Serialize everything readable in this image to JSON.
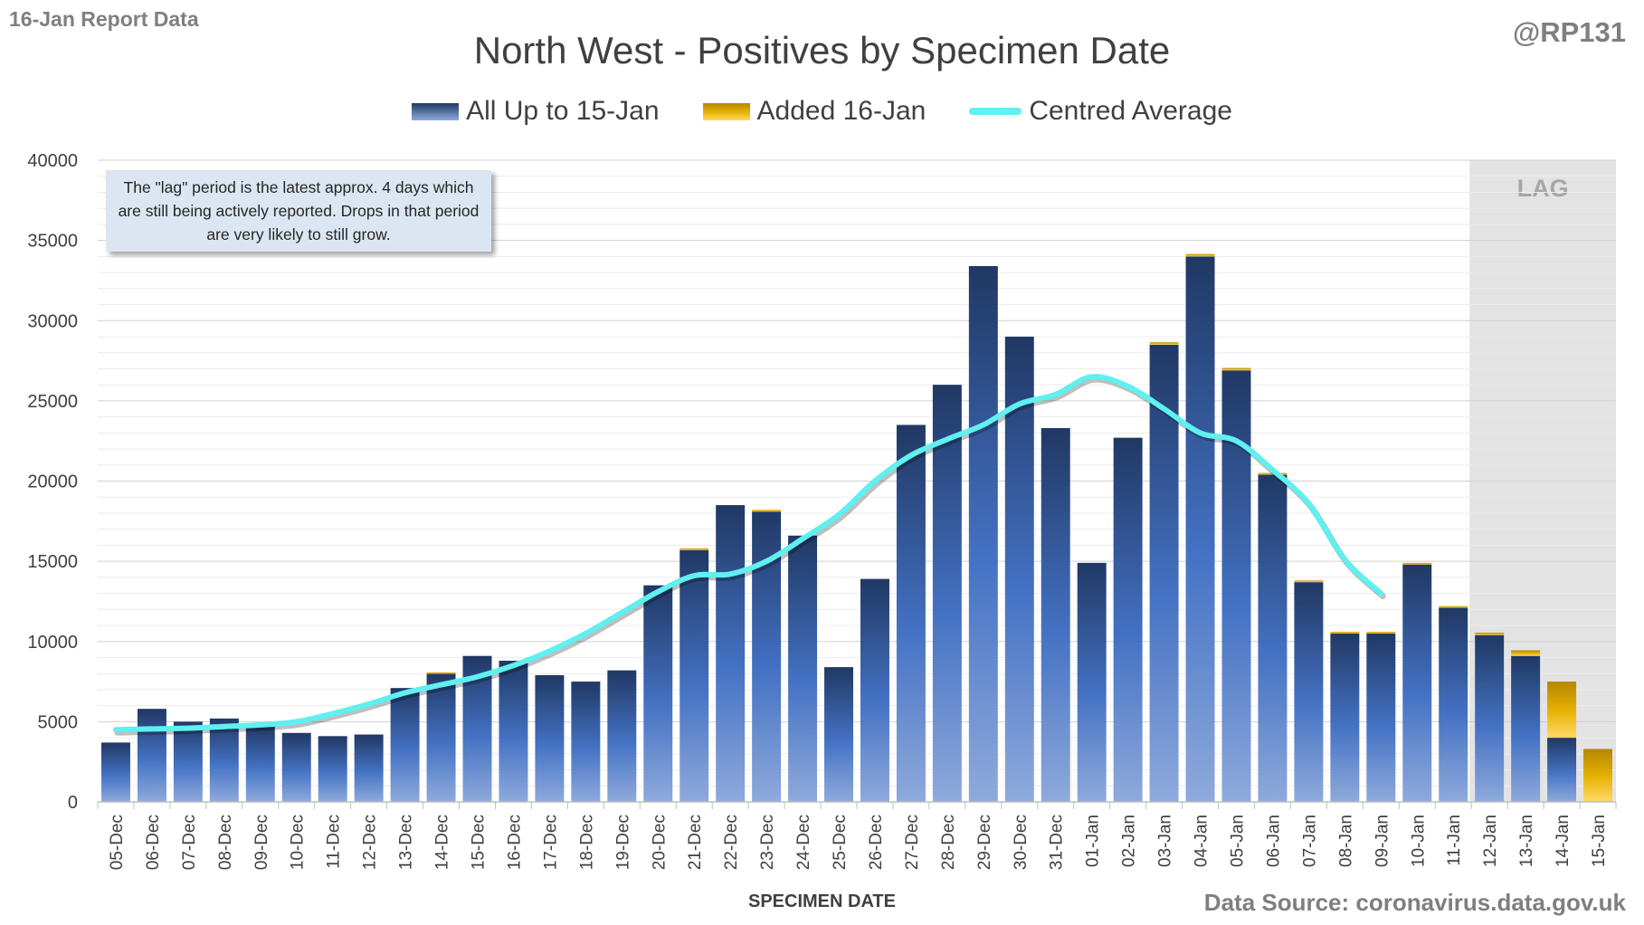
{
  "header": {
    "report_label": "16-Jan Report Data",
    "author_handle": "@RP131",
    "data_source": "Data Source: coronavirus.data.gov.uk",
    "note": "The \"lag\" period is the latest approx. 4 days which are still being actively reported.  Drops in that period are very likely to still grow.",
    "lag_label": "LAG"
  },
  "colors": {
    "bar_top": "#203864",
    "bar_bottom": "#8faadc",
    "added": "#e6b000",
    "average": "#5ff0f0",
    "lag_shading": "#d9d9d9",
    "note_bg": "#dce6f2"
  },
  "chart_data": {
    "type": "bar",
    "title": "North West - Positives by Specimen Date",
    "xlabel": "SPECIMEN DATE",
    "ylabel": "",
    "ylim": [
      0,
      40000
    ],
    "yticks": [
      0,
      5000,
      10000,
      15000,
      20000,
      25000,
      30000,
      35000,
      40000
    ],
    "grid": true,
    "legend_position": "top",
    "categories": [
      "05-Dec",
      "06-Dec",
      "07-Dec",
      "08-Dec",
      "09-Dec",
      "10-Dec",
      "11-Dec",
      "12-Dec",
      "13-Dec",
      "14-Dec",
      "15-Dec",
      "16-Dec",
      "17-Dec",
      "18-Dec",
      "19-Dec",
      "20-Dec",
      "21-Dec",
      "22-Dec",
      "23-Dec",
      "24-Dec",
      "25-Dec",
      "26-Dec",
      "27-Dec",
      "28-Dec",
      "29-Dec",
      "30-Dec",
      "31-Dec",
      "01-Jan",
      "02-Jan",
      "03-Jan",
      "04-Jan",
      "05-Jan",
      "06-Jan",
      "07-Jan",
      "08-Jan",
      "09-Jan",
      "10-Jan",
      "11-Jan",
      "12-Jan",
      "13-Jan",
      "14-Jan",
      "15-Jan"
    ],
    "series": [
      {
        "name": "All Up to 15-Jan",
        "type": "bar",
        "stack": "positives",
        "values": [
          3700,
          5800,
          5000,
          5200,
          4700,
          4300,
          4100,
          4200,
          7100,
          8000,
          9100,
          8800,
          7900,
          7500,
          8200,
          13500,
          15700,
          18500,
          18100,
          16600,
          8400,
          13900,
          23500,
          26000,
          33400,
          29000,
          23300,
          14900,
          22700,
          28500,
          34000,
          26900,
          20400,
          13700,
          10500,
          10500,
          14800,
          12100,
          10400,
          9100,
          4000,
          0
        ]
      },
      {
        "name": "Added 16-Jan",
        "type": "bar",
        "stack": "positives",
        "values": [
          0,
          0,
          0,
          0,
          0,
          0,
          0,
          0,
          0,
          70,
          0,
          0,
          0,
          0,
          0,
          0,
          100,
          0,
          100,
          0,
          0,
          0,
          0,
          0,
          0,
          0,
          0,
          0,
          0,
          150,
          150,
          150,
          100,
          100,
          100,
          100,
          100,
          100,
          150,
          350,
          3500,
          3300
        ]
      },
      {
        "name": "Centred Average",
        "type": "line",
        "values": [
          4500,
          4550,
          4600,
          4700,
          4800,
          5000,
          5500,
          6100,
          6800,
          7300,
          7800,
          8500,
          9400,
          10500,
          11800,
          13100,
          14100,
          14200,
          15000,
          16400,
          17900,
          20000,
          21600,
          22600,
          23500,
          24800,
          25400,
          26500,
          25900,
          24500,
          23000,
          22500,
          20700,
          18600,
          15100,
          13000,
          null,
          null,
          null,
          null,
          null,
          null
        ]
      }
    ],
    "lag_period": [
      "12-Jan",
      "15-Jan"
    ]
  }
}
